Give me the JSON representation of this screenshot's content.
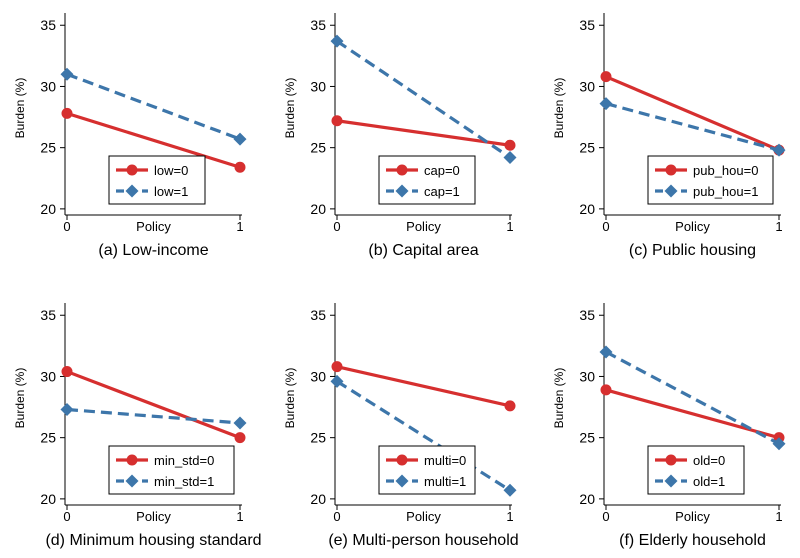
{
  "colors": {
    "series0": "#d62f2f",
    "series1": "#3d76aa",
    "axis": "#000000",
    "grid": "#ffffff"
  },
  "chart_data": [
    {
      "type": "line",
      "caption": "(a) Low-income",
      "xlabel": "Policy",
      "ylabel": "Burden (%)",
      "x": [
        0,
        1
      ],
      "xticks": [
        "0",
        "1"
      ],
      "yticks": [
        "20",
        "25",
        "30",
        "35"
      ],
      "ylim": [
        19.5,
        36
      ],
      "legend": "bottom-right",
      "series": [
        {
          "name": "low=0",
          "values": [
            27.8,
            23.4
          ],
          "style": "solid",
          "marker": "circle"
        },
        {
          "name": "low=1",
          "values": [
            31.0,
            25.7
          ],
          "style": "dashed",
          "marker": "diamond"
        }
      ]
    },
    {
      "type": "line",
      "caption": "(b) Capital area",
      "xlabel": "Policy",
      "ylabel": "Burden (%)",
      "x": [
        0,
        1
      ],
      "xticks": [
        "0",
        "1"
      ],
      "yticks": [
        "20",
        "25",
        "30",
        "35"
      ],
      "ylim": [
        19.5,
        36
      ],
      "legend": "bottom-right",
      "series": [
        {
          "name": "cap=0",
          "values": [
            27.2,
            25.2
          ],
          "style": "solid",
          "marker": "circle"
        },
        {
          "name": "cap=1",
          "values": [
            33.7,
            24.2
          ],
          "style": "dashed",
          "marker": "diamond"
        }
      ]
    },
    {
      "type": "line",
      "caption": "(c) Public housing",
      "xlabel": "Policy",
      "ylabel": "Burden (%)",
      "x": [
        0,
        1
      ],
      "xticks": [
        "0",
        "1"
      ],
      "yticks": [
        "20",
        "25",
        "30",
        "35"
      ],
      "ylim": [
        19.5,
        36
      ],
      "legend": "bottom-right",
      "series": [
        {
          "name": "pub_hou=0",
          "values": [
            30.8,
            24.8
          ],
          "style": "solid",
          "marker": "circle"
        },
        {
          "name": "pub_hou=1",
          "values": [
            28.6,
            24.8
          ],
          "style": "dashed",
          "marker": "diamond"
        }
      ]
    },
    {
      "type": "line",
      "caption": "(d) Minimum housing standard",
      "xlabel": "Policy",
      "ylabel": "Burden (%)",
      "x": [
        0,
        1
      ],
      "xticks": [
        "0",
        "1"
      ],
      "yticks": [
        "20",
        "25",
        "30",
        "35"
      ],
      "ylim": [
        19.5,
        36
      ],
      "legend": "bottom-right",
      "series": [
        {
          "name": "min_std=0",
          "values": [
            30.4,
            25.0
          ],
          "style": "solid",
          "marker": "circle"
        },
        {
          "name": "min_std=1",
          "values": [
            27.3,
            26.2
          ],
          "style": "dashed",
          "marker": "diamond"
        }
      ]
    },
    {
      "type": "line",
      "caption": "(e) Multi-person household",
      "xlabel": "Policy",
      "ylabel": "Burden (%)",
      "x": [
        0,
        1
      ],
      "xticks": [
        "0",
        "1"
      ],
      "yticks": [
        "20",
        "25",
        "30",
        "35"
      ],
      "ylim": [
        19.5,
        36
      ],
      "legend": "bottom-right",
      "series": [
        {
          "name": "multi=0",
          "values": [
            30.8,
            27.6
          ],
          "style": "solid",
          "marker": "circle"
        },
        {
          "name": "multi=1",
          "values": [
            29.6,
            20.7
          ],
          "style": "dashed",
          "marker": "diamond"
        }
      ]
    },
    {
      "type": "line",
      "caption": "(f) Elderly household",
      "xlabel": "Policy",
      "ylabel": "Burden (%)",
      "x": [
        0,
        1
      ],
      "xticks": [
        "0",
        "1"
      ],
      "yticks": [
        "20",
        "25",
        "30",
        "35"
      ],
      "ylim": [
        19.5,
        36
      ],
      "legend": "bottom-right",
      "series": [
        {
          "name": "old=0",
          "values": [
            28.9,
            25.0
          ],
          "style": "solid",
          "marker": "circle"
        },
        {
          "name": "old=1",
          "values": [
            32.0,
            24.5
          ],
          "style": "dashed",
          "marker": "diamond"
        }
      ]
    }
  ]
}
